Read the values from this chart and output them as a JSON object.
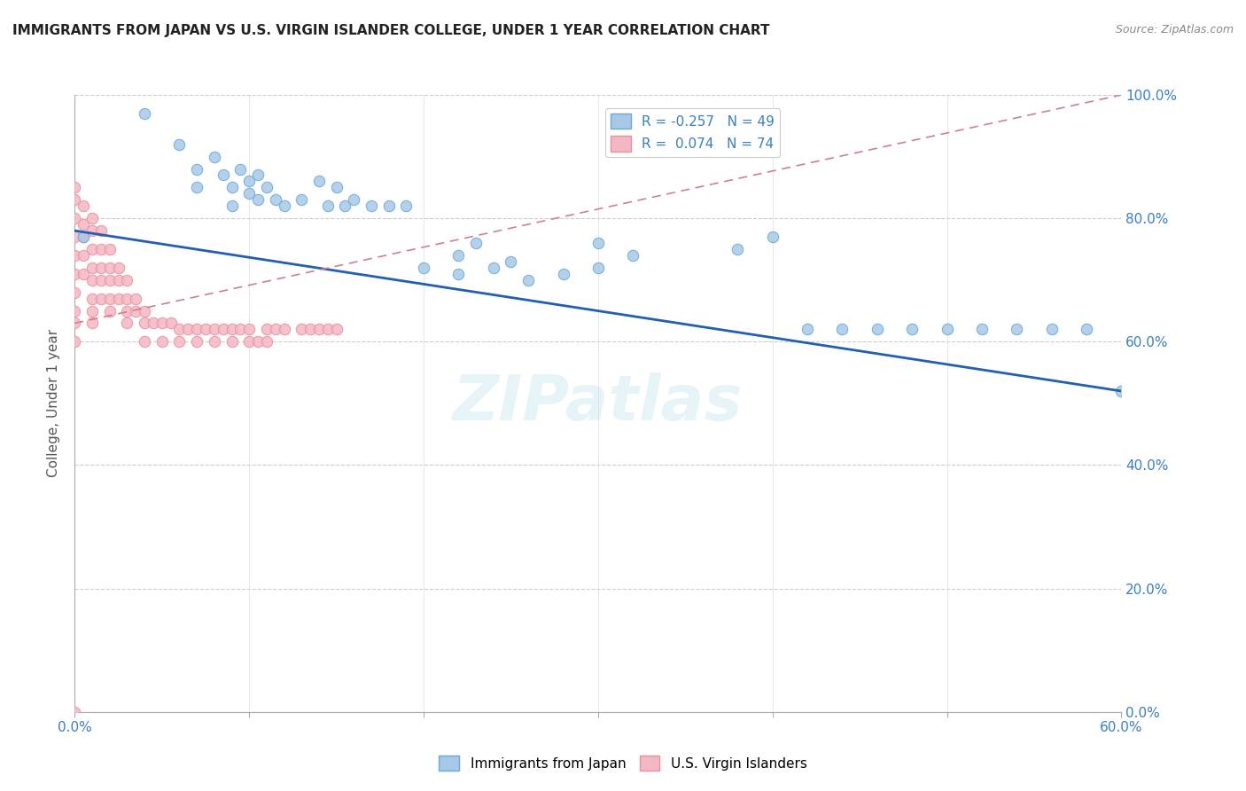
{
  "title": "IMMIGRANTS FROM JAPAN VS U.S. VIRGIN ISLANDER COLLEGE, UNDER 1 YEAR CORRELATION CHART",
  "source": "Source: ZipAtlas.com",
  "ylabel": "College, Under 1 year",
  "xlim": [
    0.0,
    0.6
  ],
  "ylim": [
    0.0,
    1.0
  ],
  "xtick_labeled": [
    0.0,
    0.6
  ],
  "ytick_vals": [
    0.0,
    0.2,
    0.4,
    0.6,
    0.8,
    1.0
  ],
  "legend_labels": [
    "Immigrants from Japan",
    "U.S. Virgin Islanders"
  ],
  "legend_R": [
    -0.257,
    0.074
  ],
  "legend_N": [
    49,
    74
  ],
  "blue_fill": "#a8c8e8",
  "blue_edge": "#6aaad4",
  "pink_fill": "#f4b8c4",
  "pink_edge": "#e890a0",
  "blue_line_color": "#2060b0",
  "pink_line_color": "#cc8090",
  "watermark": "ZIPatlas",
  "japan_x": [
    0.005,
    0.04,
    0.06,
    0.07,
    0.07,
    0.08,
    0.085,
    0.09,
    0.09,
    0.095,
    0.1,
    0.1,
    0.105,
    0.105,
    0.11,
    0.115,
    0.12,
    0.13,
    0.14,
    0.145,
    0.15,
    0.155,
    0.16,
    0.17,
    0.18,
    0.19,
    0.2,
    0.22,
    0.22,
    0.23,
    0.24,
    0.25,
    0.26,
    0.28,
    0.3,
    0.3,
    0.32,
    0.38,
    0.4,
    0.42,
    0.44,
    0.46,
    0.48,
    0.5,
    0.52,
    0.54,
    0.56,
    0.58,
    0.6
  ],
  "japan_y": [
    0.77,
    0.97,
    0.92,
    0.88,
    0.85,
    0.9,
    0.87,
    0.85,
    0.82,
    0.88,
    0.86,
    0.84,
    0.87,
    0.83,
    0.85,
    0.83,
    0.82,
    0.83,
    0.86,
    0.82,
    0.85,
    0.82,
    0.83,
    0.82,
    0.82,
    0.82,
    0.72,
    0.74,
    0.71,
    0.76,
    0.72,
    0.73,
    0.7,
    0.71,
    0.76,
    0.72,
    0.74,
    0.75,
    0.77,
    0.62,
    0.62,
    0.62,
    0.62,
    0.62,
    0.62,
    0.62,
    0.62,
    0.62,
    0.52
  ],
  "virgin_x": [
    0.0,
    0.0,
    0.0,
    0.0,
    0.0,
    0.0,
    0.0,
    0.0,
    0.0,
    0.0,
    0.005,
    0.005,
    0.005,
    0.005,
    0.005,
    0.01,
    0.01,
    0.01,
    0.01,
    0.01,
    0.01,
    0.01,
    0.01,
    0.015,
    0.015,
    0.015,
    0.015,
    0.015,
    0.02,
    0.02,
    0.02,
    0.02,
    0.02,
    0.025,
    0.025,
    0.025,
    0.03,
    0.03,
    0.03,
    0.03,
    0.035,
    0.035,
    0.04,
    0.04,
    0.04,
    0.045,
    0.05,
    0.05,
    0.055,
    0.06,
    0.06,
    0.065,
    0.07,
    0.07,
    0.075,
    0.08,
    0.08,
    0.085,
    0.09,
    0.09,
    0.095,
    0.1,
    0.1,
    0.105,
    0.11,
    0.11,
    0.115,
    0.12,
    0.13,
    0.135,
    0.14,
    0.145,
    0.15,
    0.0
  ],
  "virgin_y": [
    0.85,
    0.83,
    0.8,
    0.77,
    0.74,
    0.71,
    0.68,
    0.65,
    0.63,
    0.6,
    0.82,
    0.79,
    0.77,
    0.74,
    0.71,
    0.8,
    0.78,
    0.75,
    0.72,
    0.7,
    0.67,
    0.65,
    0.63,
    0.78,
    0.75,
    0.72,
    0.7,
    0.67,
    0.75,
    0.72,
    0.7,
    0.67,
    0.65,
    0.72,
    0.7,
    0.67,
    0.7,
    0.67,
    0.65,
    0.63,
    0.67,
    0.65,
    0.65,
    0.63,
    0.6,
    0.63,
    0.63,
    0.6,
    0.63,
    0.62,
    0.6,
    0.62,
    0.62,
    0.6,
    0.62,
    0.62,
    0.6,
    0.62,
    0.62,
    0.6,
    0.62,
    0.6,
    0.62,
    0.6,
    0.62,
    0.6,
    0.62,
    0.62,
    0.62,
    0.62,
    0.62,
    0.62,
    0.62,
    0.0
  ],
  "blue_line_x0": 0.0,
  "blue_line_y0": 0.78,
  "blue_line_x1": 0.6,
  "blue_line_y1": 0.52,
  "pink_line_x0": 0.0,
  "pink_line_y0": 0.63,
  "pink_line_x1": 0.6,
  "pink_line_y1": 1.0
}
